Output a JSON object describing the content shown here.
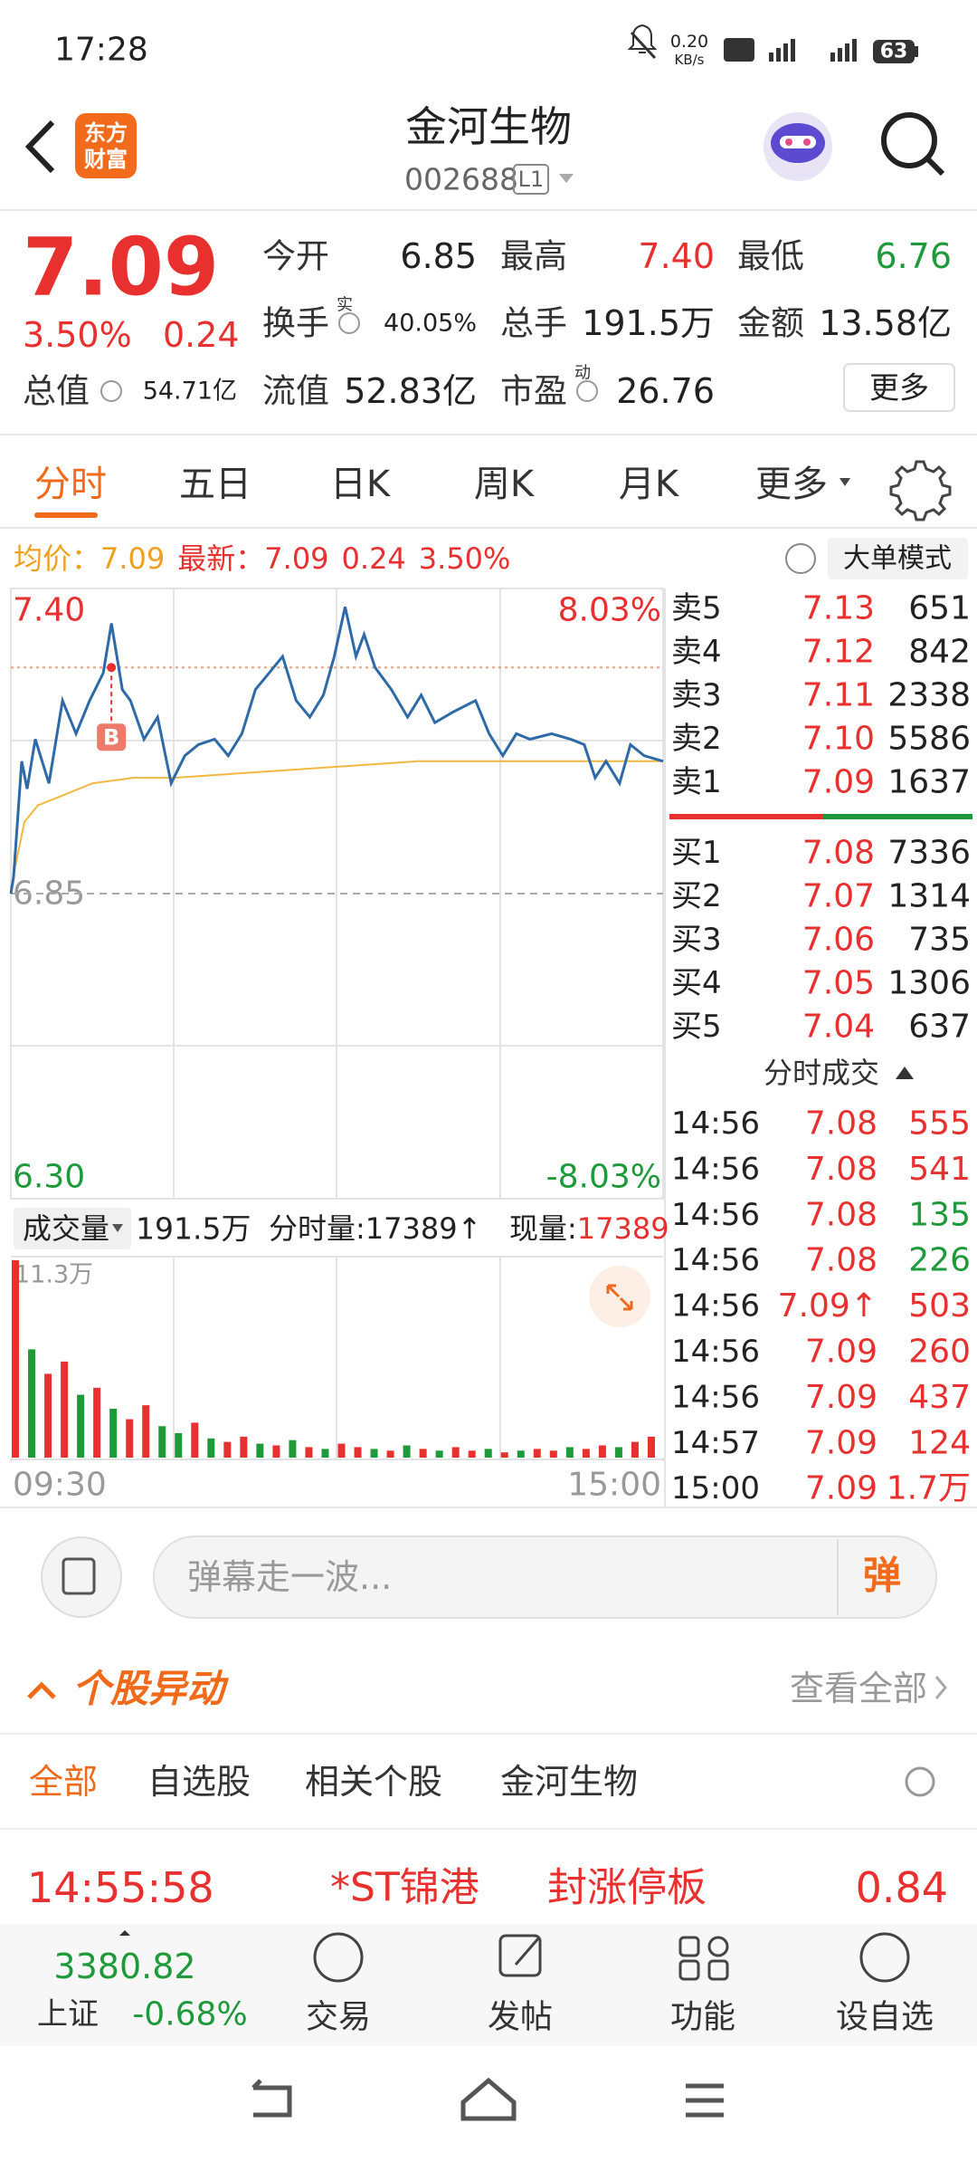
{
  "status_bar": {
    "time": "17:28",
    "net_speed": "0.20",
    "net_unit": "KB/s",
    "battery": "63"
  },
  "header": {
    "logo": [
      "东方",
      "财富"
    ],
    "name": "金河生物",
    "code": "002688",
    "level": "L1"
  },
  "quote": {
    "price": "7.09",
    "change_pct": "3.50%",
    "change": "0.24",
    "more": "更多",
    "stats": [
      {
        "label": "今开",
        "value": "6.85",
        "color": "#222222"
      },
      {
        "label": "最高",
        "value": "7.40",
        "color": "#e8312f"
      },
      {
        "label": "最低",
        "value": "6.76",
        "color": "#1f9a3a"
      },
      {
        "label": "换手",
        "sup": "实",
        "value": "40.05%",
        "color": "#222222"
      },
      {
        "label": "总手",
        "value": "191.5万",
        "color": "#222222"
      },
      {
        "label": "金额",
        "value": "13.58亿",
        "color": "#222222"
      },
      {
        "label": "总值",
        "value": "54.71亿",
        "color": "#222222"
      },
      {
        "label": "流值",
        "value": "52.83亿",
        "color": "#222222"
      },
      {
        "label": "市盈",
        "sup": "动",
        "value": "26.76",
        "color": "#222222"
      }
    ]
  },
  "tabs": {
    "items": [
      "分时",
      "五日",
      "日K",
      "周K",
      "月K",
      "更多"
    ],
    "active": 0
  },
  "legend": {
    "avg_label": "均价：",
    "avg": "7.09",
    "last_label": "最新：",
    "last": "7.09",
    "change": "0.24",
    "change_pct": "3.50%",
    "mode": "大单模式"
  },
  "chart_data": [
    {
      "type": "line",
      "xlim": [
        0,
        240
      ],
      "ylim": [
        6.3,
        7.4
      ],
      "yticks": [
        {
          "value": 7.4,
          "label": "7.40"
        },
        {
          "value": 6.85,
          "label": "6.85"
        },
        {
          "value": 6.3,
          "label": "6.30"
        }
      ],
      "y2lim": [
        -8.03,
        8.03
      ],
      "y2ticks": [
        {
          "value": 8.03,
          "label": "8.03%"
        },
        {
          "value": -8.03,
          "label": "-8.03%"
        }
      ],
      "series": [
        {
          "name": "均价：",
          "color": "#f0b840",
          "x": [
            0,
            5,
            10,
            20,
            30,
            45,
            60,
            90,
            120,
            150,
            180,
            210,
            240
          ],
          "values": [
            6.86,
            6.98,
            7.01,
            7.03,
            7.05,
            7.06,
            7.06,
            7.07,
            7.08,
            7.09,
            7.09,
            7.09,
            7.09
          ]
        },
        {
          "name": "最新：",
          "color": "#2e6aa8",
          "x": [
            0,
            1,
            4,
            6,
            9,
            14,
            19,
            24,
            29,
            34,
            37,
            41,
            44,
            49,
            54,
            59,
            64,
            69,
            75,
            80,
            85,
            90,
            95,
            100,
            105,
            110,
            115,
            119,
            123,
            127,
            130,
            134,
            140,
            146,
            151,
            156,
            163,
            171,
            176,
            181,
            186,
            191,
            199,
            206,
            211,
            215,
            219,
            224,
            228,
            233,
            240
          ],
          "values": [
            6.85,
            6.88,
            7.09,
            7.04,
            7.13,
            7.05,
            7.2,
            7.14,
            7.2,
            7.25,
            7.34,
            7.22,
            7.2,
            7.13,
            7.17,
            7.05,
            7.1,
            7.12,
            7.13,
            7.1,
            7.14,
            7.22,
            7.25,
            7.28,
            7.2,
            7.17,
            7.21,
            7.28,
            7.37,
            7.28,
            7.32,
            7.26,
            7.22,
            7.17,
            7.21,
            7.16,
            7.18,
            7.2,
            7.14,
            7.1,
            7.14,
            7.13,
            7.14,
            7.13,
            7.12,
            7.06,
            7.09,
            7.05,
            7.12,
            7.1,
            7.09
          ]
        }
      ],
      "annotations": [
        {
          "label": "B",
          "x": 37,
          "value": 7.26
        }
      ]
    },
    {
      "type": "bar",
      "xlim": [
        0,
        240
      ],
      "ylim": [
        0,
        113000
      ],
      "yticks": [
        {
          "value": 113000,
          "label": "11.3万"
        }
      ],
      "xticks": [
        {
          "value": 0,
          "label": "09:30"
        },
        {
          "value": 240,
          "label": "15:00"
        }
      ],
      "x": [
        0,
        6,
        12,
        18,
        24,
        30,
        36,
        42,
        48,
        54,
        60,
        66,
        72,
        78,
        84,
        90,
        96,
        102,
        108,
        114,
        120,
        126,
        132,
        138,
        144,
        150,
        156,
        162,
        168,
        174,
        180,
        186,
        192,
        198,
        204,
        210,
        216,
        222,
        228,
        234
      ],
      "values": [
        113000,
        62000,
        48000,
        55000,
        36000,
        40000,
        28000,
        22000,
        30000,
        18000,
        14000,
        20000,
        11000,
        9000,
        12000,
        8000,
        7000,
        10000,
        6000,
        5000,
        8000,
        6000,
        5000,
        4000,
        7000,
        5000,
        4000,
        6000,
        4000,
        5000,
        3000,
        4000,
        5000,
        4000,
        6000,
        5000,
        7000,
        6000,
        9000,
        12000
      ],
      "colors": [
        "#e8312f",
        "#1f9a3a",
        "#e8312f",
        "#e8312f",
        "#1f9a3a",
        "#e8312f",
        "#1f9a3a",
        "#e8312f",
        "#e8312f",
        "#1f9a3a",
        "#1f9a3a",
        "#e8312f",
        "#1f9a3a",
        "#e8312f",
        "#e8312f",
        "#1f9a3a",
        "#e8312f",
        "#1f9a3a",
        "#e8312f",
        "#1f9a3a",
        "#e8312f",
        "#e8312f",
        "#1f9a3a",
        "#e8312f",
        "#1f9a3a",
        "#e8312f",
        "#1f9a3a",
        "#e8312f",
        "#e8312f",
        "#1f9a3a",
        "#e8312f",
        "#1f9a3a",
        "#e8312f",
        "#e8312f",
        "#1f9a3a",
        "#e8312f",
        "#e8312f",
        "#1f9a3a",
        "#e8312f",
        "#e8312f"
      ]
    }
  ],
  "volume_header": {
    "label": "成交量",
    "total": "191.5万",
    "minute_label": "分时量:",
    "minute": "17389",
    "arrow": "↑",
    "now_label": "现量:",
    "now": "17389"
  },
  "order_book": {
    "asks": [
      {
        "label": "卖5",
        "price": "7.13",
        "volume": "651"
      },
      {
        "label": "卖4",
        "price": "7.12",
        "volume": "842"
      },
      {
        "label": "卖3",
        "price": "7.11",
        "volume": "2338"
      },
      {
        "label": "卖2",
        "price": "7.10",
        "volume": "5586"
      },
      {
        "label": "卖1",
        "price": "7.09",
        "volume": "1637"
      }
    ],
    "bids": [
      {
        "label": "买1",
        "price": "7.08",
        "volume": "7336"
      },
      {
        "label": "买2",
        "price": "7.07",
        "volume": "1314"
      },
      {
        "label": "买3",
        "price": "7.06",
        "volume": "735"
      },
      {
        "label": "买4",
        "price": "7.05",
        "volume": "1306"
      },
      {
        "label": "买5",
        "price": "7.04",
        "volume": "637"
      }
    ]
  },
  "ticks": {
    "title": "分时成交",
    "rows": [
      {
        "time": "14:56",
        "price": "7.08",
        "volume": "555",
        "color": "#e8312f"
      },
      {
        "time": "14:56",
        "price": "7.08",
        "volume": "541",
        "color": "#e8312f"
      },
      {
        "time": "14:56",
        "price": "7.08",
        "volume": "135",
        "color": "#1f9a3a"
      },
      {
        "time": "14:56",
        "price": "7.08",
        "volume": "226",
        "color": "#1f9a3a"
      },
      {
        "time": "14:56",
        "price": "7.09↑",
        "volume": "503",
        "color": "#e8312f"
      },
      {
        "time": "14:56",
        "price": "7.09",
        "volume": "260",
        "color": "#e8312f"
      },
      {
        "time": "14:56",
        "price": "7.09",
        "volume": "437",
        "color": "#e8312f"
      },
      {
        "time": "14:57",
        "price": "7.09",
        "volume": "124",
        "color": "#e8312f"
      },
      {
        "time": "15:00",
        "price": "7.09",
        "volume": "1.7万",
        "color": "#e8312f"
      }
    ]
  },
  "comment": {
    "placeholder": "弹幕走一波...",
    "button": "弹"
  },
  "movement": {
    "title": "个股异动",
    "view_all": "查看全部",
    "filters": [
      "全部",
      "自选股",
      "相关个股",
      "金河生物"
    ],
    "active": 0,
    "row": {
      "time": "14:55:58",
      "stock": "*ST锦港",
      "event": "封涨停板",
      "value": "0.84"
    }
  },
  "bottom_bar": {
    "index_value": "3380.82",
    "index_name": "上证",
    "index_change": "-0.68%",
    "items": [
      "交易",
      "发帖",
      "功能",
      "设自选"
    ]
  }
}
